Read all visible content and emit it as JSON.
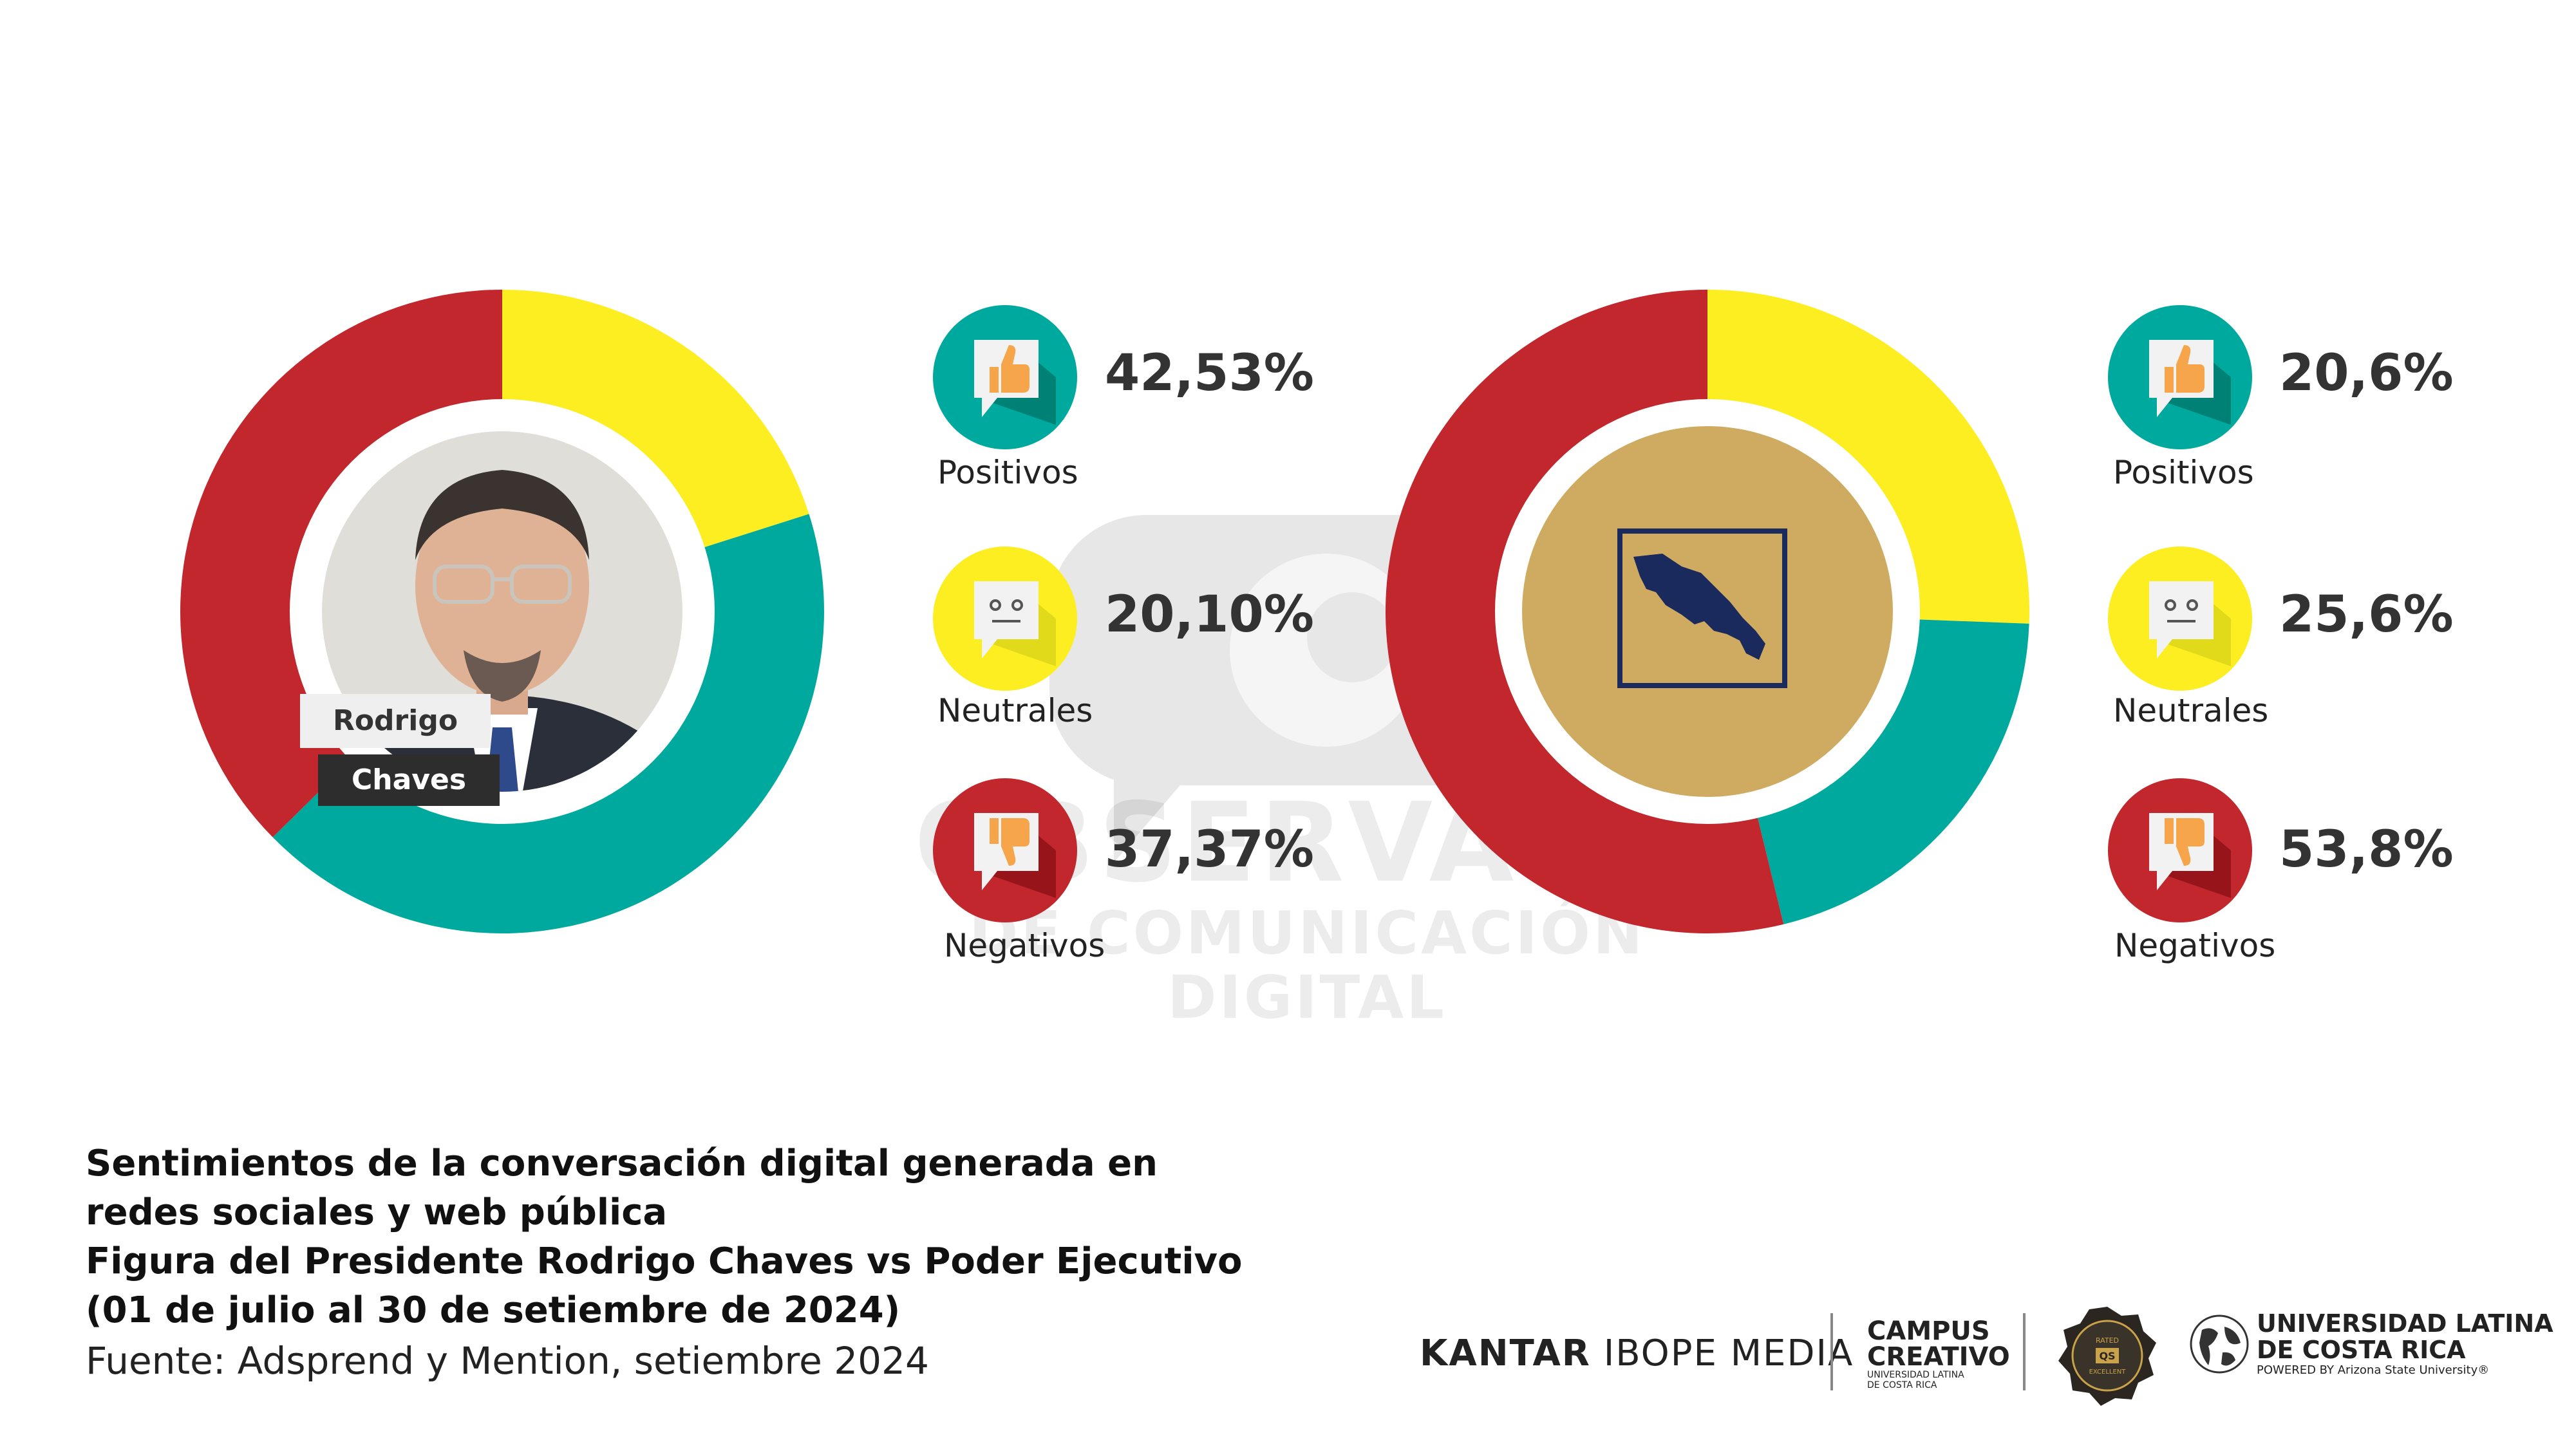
{
  "colors": {
    "positive": "#00a99d",
    "neutral": "#fcee21",
    "negative": "#c1272d",
    "dark": "#333333",
    "exec_center": "#cfab62",
    "exec_emblem": "#1b2a5c"
  },
  "watermark": {
    "line1": "OBSERVATORIO",
    "line2": "DE COMUNICACIÓN DIGITAL"
  },
  "left_panel": {
    "name_first": "Rodrigo",
    "name_last": "Chaves"
  },
  "chart_data": [
    {
      "type": "pie",
      "donut": true,
      "categories": [
        "Positivos",
        "Neutrales",
        "Negativos"
      ],
      "values": [
        42.53,
        20.1,
        37.37
      ],
      "value_labels": [
        "42,53%",
        "20,10%",
        "37,37%"
      ],
      "colors": [
        "#00a99d",
        "#fcee21",
        "#c1272d"
      ],
      "legend": "right"
    },
    {
      "type": "pie",
      "donut": true,
      "categories": [
        "Positivos",
        "Neutrales",
        "Negativos"
      ],
      "values": [
        20.6,
        25.6,
        53.8
      ],
      "value_labels": [
        "20,6%",
        "25,6%",
        "53,8%"
      ],
      "colors": [
        "#00a99d",
        "#fcee21",
        "#c1272d"
      ],
      "legend": "right"
    }
  ],
  "legend_icons": [
    "thumbs-up-icon",
    "neutral-face-icon",
    "thumbs-down-icon"
  ],
  "caption": {
    "line1": "Sentimientos de la conversación digital generada en",
    "line2": "redes sociales y web pública",
    "line3": "Figura del Presidente Rodrigo Chaves vs Poder Ejecutivo",
    "line4": "(01 de julio al 30 de setiembre de 2024)",
    "source": "Fuente: Adsprend y Mention, setiembre 2024"
  },
  "logos": {
    "kantar_bold": "KANTAR",
    "kantar_rest": "IBOPE MEDIA",
    "campus_line1": "CAMPUS",
    "campus_line2": "CREATIVO",
    "campus_sub1": "UNIVERSIDAD LATINA",
    "campus_sub2": "DE COSTA RICA",
    "seal_top": "RATED",
    "seal_number": "QS",
    "seal_bottom": "EXCELLENT",
    "ulatina_line1": "UNIVERSIDAD LATINA",
    "ulatina_line2": "DE COSTA RICA",
    "ulatina_line3": "POWERED BY Arizona State University®"
  }
}
